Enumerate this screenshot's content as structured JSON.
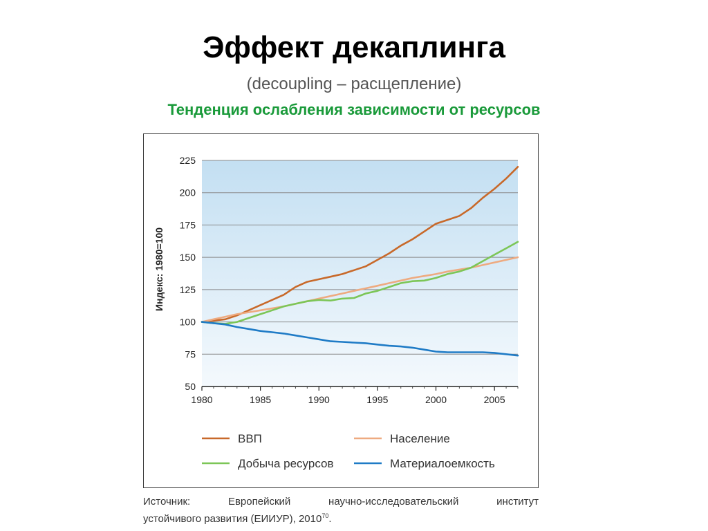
{
  "slide": {
    "title": "Эффект декаплинга",
    "subtitle": "(decoupling – расщепление)",
    "tagline": "Тенденция ослабления зависимости от ресурсов"
  },
  "source": {
    "line1_words": [
      "Источник:",
      "Европейский",
      "научно-исследовательский",
      "институт"
    ],
    "line2": "устойчивого развития (ЕИИУР), 2010",
    "footnote": "70",
    "end": "."
  },
  "chart_data": {
    "type": "line",
    "ylabel": "Индекс: 1980=100",
    "xlabel": "",
    "xlim": [
      1980,
      2007
    ],
    "ylim": [
      50,
      225
    ],
    "x_ticks": [
      1980,
      1985,
      1990,
      1995,
      2000,
      2005
    ],
    "y_ticks": [
      50,
      75,
      100,
      125,
      150,
      175,
      200,
      225
    ],
    "grid": true,
    "legend_position": "bottom",
    "background": "gradient-blue",
    "series": [
      {
        "name": "ВВП",
        "color": "#c8692a",
        "points": [
          [
            1980,
            100
          ],
          [
            1981,
            101
          ],
          [
            1982,
            102
          ],
          [
            1983,
            105
          ],
          [
            1984,
            109
          ],
          [
            1985,
            113
          ],
          [
            1986,
            117
          ],
          [
            1987,
            121
          ],
          [
            1988,
            127
          ],
          [
            1989,
            131
          ],
          [
            1990,
            133
          ],
          [
            1991,
            135
          ],
          [
            1992,
            137
          ],
          [
            1993,
            140
          ],
          [
            1994,
            143
          ],
          [
            1995,
            148
          ],
          [
            1996,
            153
          ],
          [
            1997,
            159
          ],
          [
            1998,
            164
          ],
          [
            1999,
            170
          ],
          [
            2000,
            176
          ],
          [
            2001,
            179
          ],
          [
            2002,
            182
          ],
          [
            2003,
            188
          ],
          [
            2004,
            196
          ],
          [
            2005,
            203
          ],
          [
            2006,
            211
          ],
          [
            2007,
            220
          ]
        ]
      },
      {
        "name": "Население",
        "color": "#eeaa80",
        "points": [
          [
            1980,
            100
          ],
          [
            1981,
            102
          ],
          [
            1982,
            104
          ],
          [
            1983,
            106
          ],
          [
            1984,
            107.5
          ],
          [
            1985,
            109
          ],
          [
            1986,
            110.5
          ],
          [
            1987,
            112
          ],
          [
            1988,
            114
          ],
          [
            1989,
            116
          ],
          [
            1990,
            118
          ],
          [
            1991,
            120
          ],
          [
            1992,
            122
          ],
          [
            1993,
            124
          ],
          [
            1994,
            126
          ],
          [
            1995,
            128
          ],
          [
            1996,
            130
          ],
          [
            1997,
            132
          ],
          [
            1998,
            134
          ],
          [
            1999,
            135.5
          ],
          [
            2000,
            137
          ],
          [
            2001,
            139
          ],
          [
            2002,
            140.5
          ],
          [
            2003,
            142
          ],
          [
            2004,
            144
          ],
          [
            2005,
            146
          ],
          [
            2006,
            148
          ],
          [
            2007,
            150
          ]
        ]
      },
      {
        "name": "Добыча ресурсов",
        "color": "#7cc657",
        "points": [
          [
            1980,
            100
          ],
          [
            1981,
            99
          ],
          [
            1982,
            98.5
          ],
          [
            1983,
            100
          ],
          [
            1984,
            103
          ],
          [
            1985,
            106
          ],
          [
            1986,
            109
          ],
          [
            1987,
            112
          ],
          [
            1988,
            114
          ],
          [
            1989,
            116
          ],
          [
            1990,
            117
          ],
          [
            1991,
            116.5
          ],
          [
            1992,
            118
          ],
          [
            1993,
            118.5
          ],
          [
            1994,
            122
          ],
          [
            1995,
            124
          ],
          [
            1996,
            127
          ],
          [
            1997,
            130
          ],
          [
            1998,
            131.5
          ],
          [
            1999,
            132
          ],
          [
            2000,
            134
          ],
          [
            2001,
            137
          ],
          [
            2002,
            139
          ],
          [
            2003,
            142
          ],
          [
            2004,
            147
          ],
          [
            2005,
            152
          ],
          [
            2006,
            157
          ],
          [
            2007,
            162
          ]
        ]
      },
      {
        "name": "Материалоемкость",
        "color": "#1f7bc6",
        "points": [
          [
            1980,
            100
          ],
          [
            1981,
            99
          ],
          [
            1982,
            98
          ],
          [
            1983,
            96
          ],
          [
            1984,
            94.5
          ],
          [
            1985,
            93
          ],
          [
            1986,
            92
          ],
          [
            1987,
            91
          ],
          [
            1988,
            89.5
          ],
          [
            1989,
            88
          ],
          [
            1990,
            86.5
          ],
          [
            1991,
            85
          ],
          [
            1992,
            84.5
          ],
          [
            1993,
            84
          ],
          [
            1994,
            83.5
          ],
          [
            1995,
            82.5
          ],
          [
            1996,
            81.5
          ],
          [
            1997,
            81
          ],
          [
            1998,
            80
          ],
          [
            1999,
            78.5
          ],
          [
            2000,
            77
          ],
          [
            2001,
            76.5
          ],
          [
            2002,
            76.5
          ],
          [
            2003,
            76.5
          ],
          [
            2004,
            76.5
          ],
          [
            2005,
            76
          ],
          [
            2006,
            75
          ],
          [
            2007,
            74
          ]
        ]
      }
    ]
  }
}
